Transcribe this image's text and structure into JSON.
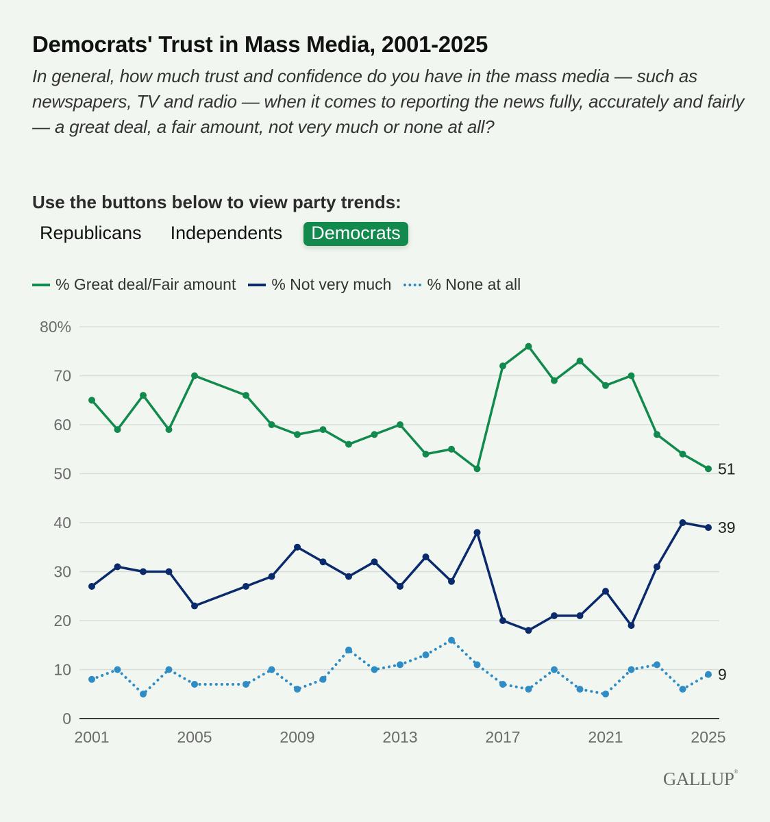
{
  "header": {
    "title": "Democrats' Trust in Mass Media, 2001-2025",
    "subtitle": "In general, how much trust and confidence do you have in the mass media — such as newspapers, TV and radio — when it comes to reporting the news fully, accurately and fairly — a great deal, a fair amount, not very much or none at all?"
  },
  "controls": {
    "instructions": "Use the buttons below to view party trends:",
    "buttons": [
      {
        "label": "Republicans",
        "active": false
      },
      {
        "label": "Independents",
        "active": false
      },
      {
        "label": "Democrats",
        "active": true
      }
    ]
  },
  "colors": {
    "great_deal": "#138a4d",
    "not_very_much": "#0b2a6b",
    "none_at_all": "#2f8cc4",
    "active_button": "#138a4d"
  },
  "footer": {
    "brand": "GALLUP"
  },
  "chart_data": {
    "type": "line",
    "title": "Democrats' Trust in Mass Media, 2001-2025",
    "xlabel": "",
    "ylabel": "",
    "ylim": [
      0,
      80
    ],
    "xlim": [
      2001,
      2025
    ],
    "yticks": [
      0,
      10,
      20,
      30,
      40,
      50,
      60,
      70,
      80
    ],
    "ytick_labels": [
      "0",
      "10",
      "20",
      "30",
      "40",
      "50",
      "60",
      "70",
      "80%"
    ],
    "xticks": [
      2001,
      2005,
      2009,
      2013,
      2017,
      2021,
      2025
    ],
    "xtick_labels": [
      "2001",
      "2005",
      "2009",
      "2013",
      "2017",
      "2021",
      "2025"
    ],
    "grid": true,
    "legend_position": "top-left",
    "x": [
      2001,
      2002,
      2003,
      2004,
      2005,
      2007,
      2008,
      2009,
      2010,
      2011,
      2012,
      2013,
      2014,
      2015,
      2016,
      2017,
      2018,
      2019,
      2020,
      2021,
      2022,
      2023,
      2024,
      2025
    ],
    "series": [
      {
        "name": "% Great deal/Fair amount",
        "style": "solid",
        "color": "#138a4d",
        "values": [
          65,
          59,
          66,
          59,
          70,
          66,
          60,
          58,
          59,
          56,
          58,
          60,
          54,
          55,
          51,
          72,
          76,
          69,
          73,
          68,
          70,
          58,
          54,
          51
        ],
        "end_label": "51"
      },
      {
        "name": "% Not very much",
        "style": "solid",
        "color": "#0b2a6b",
        "values": [
          27,
          31,
          30,
          30,
          23,
          27,
          29,
          35,
          32,
          29,
          32,
          27,
          33,
          28,
          38,
          20,
          18,
          21,
          21,
          26,
          19,
          31,
          40,
          39
        ],
        "end_label": "39"
      },
      {
        "name": "% None at all",
        "style": "dotted",
        "color": "#2f8cc4",
        "values": [
          8,
          10,
          5,
          10,
          7,
          7,
          10,
          6,
          8,
          14,
          10,
          11,
          13,
          16,
          11,
          7,
          6,
          10,
          6,
          5,
          10,
          11,
          6,
          9
        ],
        "end_label": "9"
      }
    ]
  }
}
